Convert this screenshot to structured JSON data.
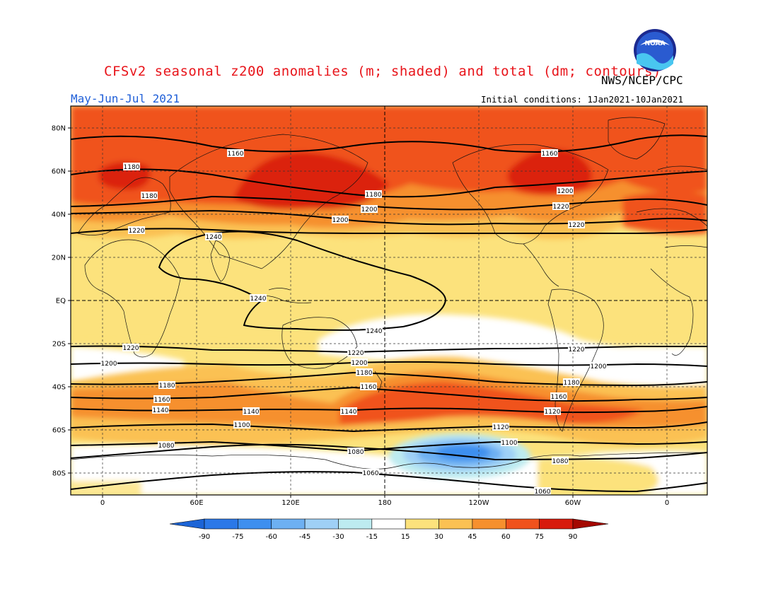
{
  "header": {
    "title": "CFSv2 seasonal z200 anomalies (m; shaded) and total (dm; contours)",
    "agency": "NWS/NCEP/CPC",
    "period": "May-Jun-Jul 2021",
    "initial_conditions": "Initial conditions: 1Jan2021-10Jan2021",
    "logo_text": "NOAA"
  },
  "axes": {
    "lat_labels": [
      "80N",
      "60N",
      "40N",
      "20N",
      "EQ",
      "20S",
      "40S",
      "60S",
      "80S"
    ],
    "lon_labels": [
      "0",
      "60E",
      "120E",
      "180",
      "120W",
      "60W",
      "0"
    ]
  },
  "colorbar": {
    "ticks": [
      "-90",
      "-75",
      "-60",
      "-45",
      "-30",
      "-15",
      "15",
      "30",
      "45",
      "60",
      "75",
      "90"
    ],
    "colors": [
      "#1c64d6",
      "#2b78e8",
      "#3e8fef",
      "#6db0f2",
      "#9fd0f6",
      "#bdebf0",
      "#ffffff",
      "#fce27c",
      "#fbc153",
      "#f6902e",
      "#f0521c",
      "#d71a0c",
      "#a40800"
    ]
  },
  "contour_labels": [
    "1160",
    "1180",
    "1160",
    "1180",
    "1200",
    "1180",
    "1200",
    "1220",
    "1200",
    "1220",
    "1220",
    "1240",
    "1240",
    "1240",
    "1220",
    "1220",
    "1220",
    "1200",
    "1200",
    "1200",
    "1180",
    "1180",
    "1180",
    "1160",
    "1160",
    "1160",
    "1140",
    "1140",
    "1140",
    "1120",
    "1120",
    "1100",
    "1100",
    "1080",
    "1080",
    "1080",
    "1060",
    "1060"
  ],
  "anomaly_bands": {
    "north_polar": 60,
    "north_midlat": 45,
    "subtropics": 30,
    "tropics": 15,
    "south_midlat_max": 60,
    "south_pole_min": -60
  }
}
